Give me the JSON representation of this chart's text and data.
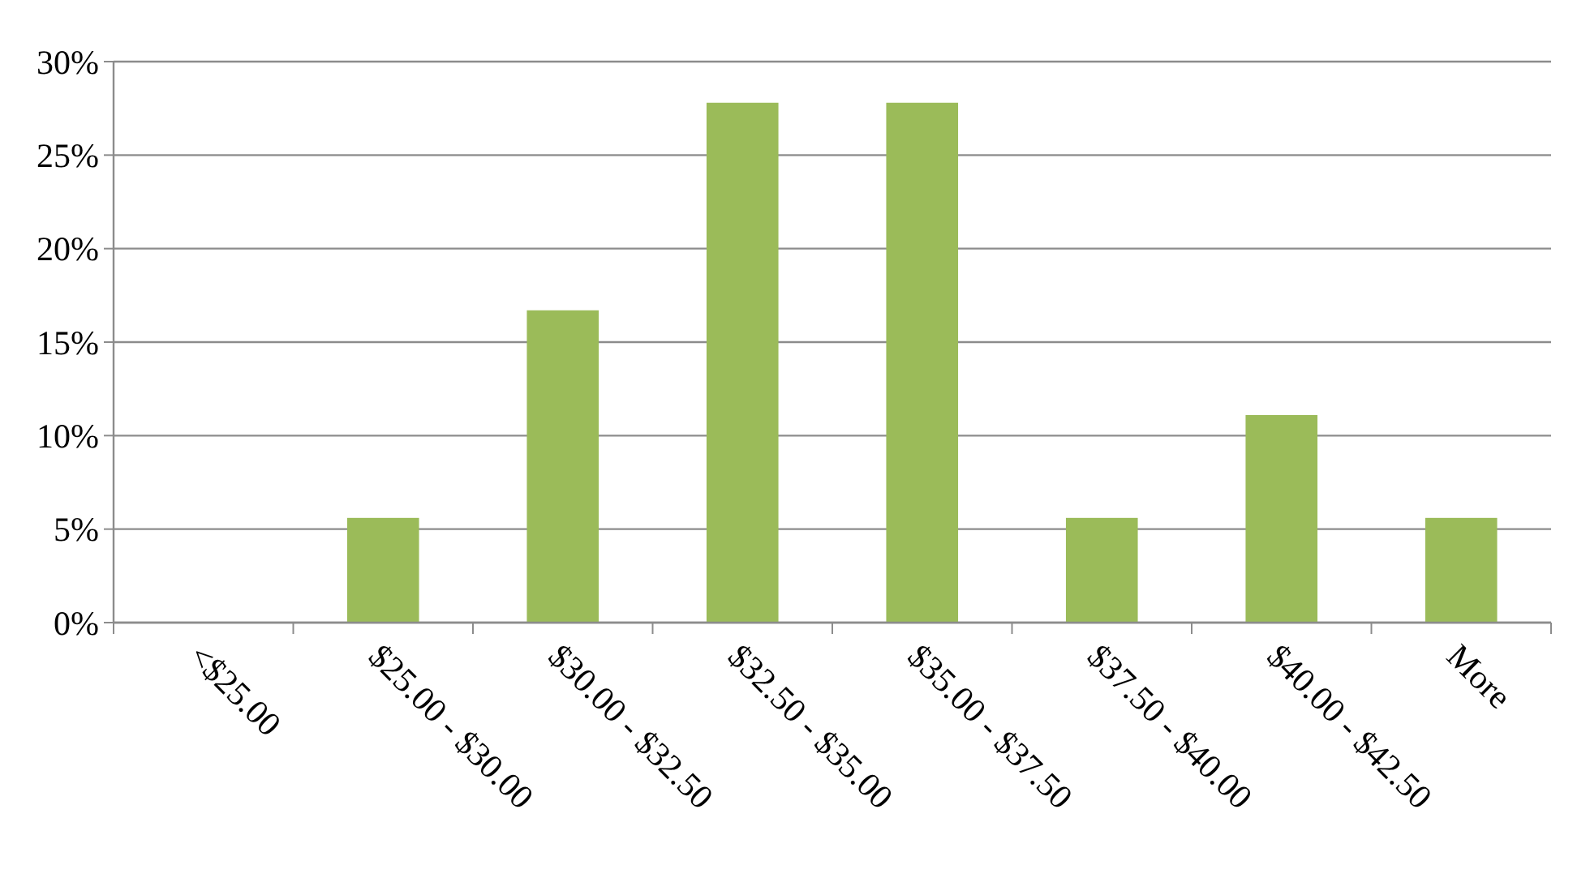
{
  "chart_data": {
    "type": "bar",
    "categories": [
      "<$25.00",
      "$25.00 - $30.00",
      "$30.00 - $32.50",
      "$32.50 - $35.00",
      "$35.00 - $37.50",
      "$37.50 - $40.00",
      "$40.00 - $42.50",
      "More"
    ],
    "values": [
      0,
      5.6,
      16.7,
      27.8,
      27.8,
      5.6,
      11.1,
      5.6
    ],
    "color": "#9bbb59",
    "ylim": [
      0,
      30
    ],
    "yticks": [
      {
        "value": 0,
        "label": "0%"
      },
      {
        "value": 5,
        "label": "5%"
      },
      {
        "value": 10,
        "label": "10%"
      },
      {
        "value": 15,
        "label": "15%"
      },
      {
        "value": 20,
        "label": "20%"
      },
      {
        "value": 25,
        "label": "25%"
      },
      {
        "value": 30,
        "label": "30%"
      }
    ],
    "grid": "y"
  }
}
